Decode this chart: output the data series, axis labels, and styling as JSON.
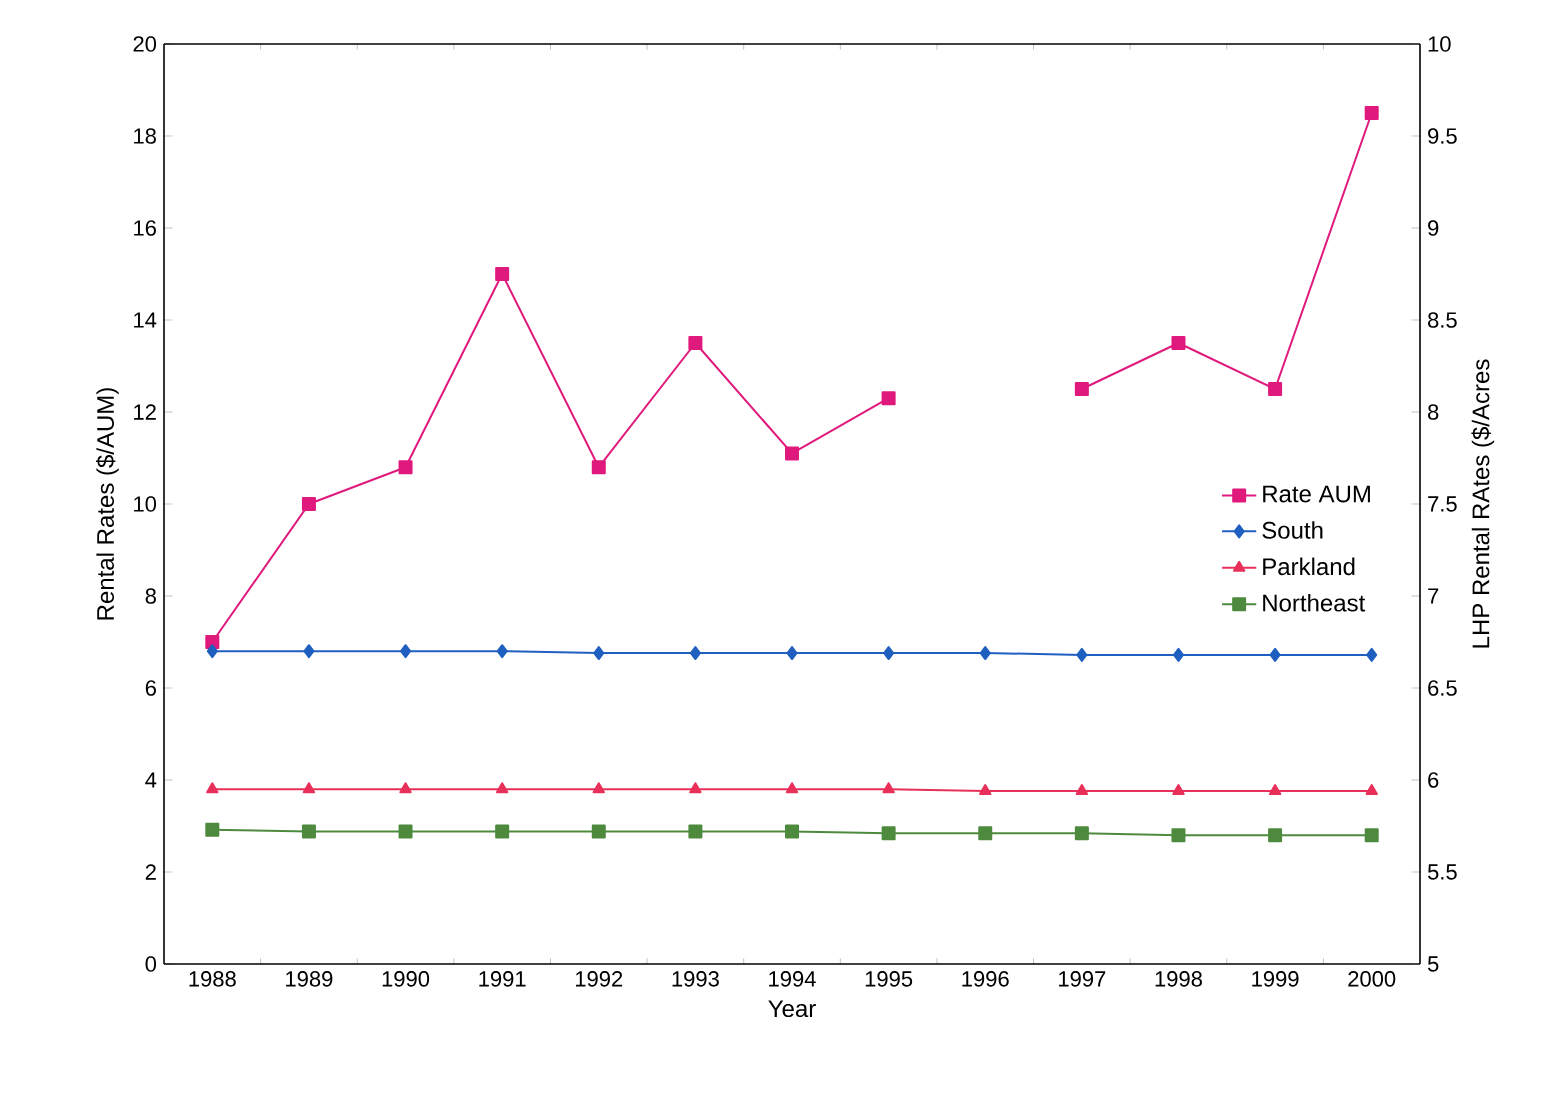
{
  "chart_data": {
    "type": "line",
    "xlabel": "Year",
    "ylabel": "Rental Rates ($/AUM)",
    "y2label": "LHP Rental RAtes ($/Acres",
    "categories": [
      "1988",
      "1989",
      "1990",
      "1991",
      "1992",
      "1993",
      "1994",
      "1995",
      "1996",
      "1997",
      "1998",
      "1999",
      "2000"
    ],
    "ylim": [
      0,
      20
    ],
    "yticks": [
      0,
      2,
      4,
      6,
      8,
      10,
      12,
      14,
      16,
      18,
      20
    ],
    "y2lim": [
      5,
      10
    ],
    "y2ticks": [
      5,
      5.5,
      6,
      6.5,
      7,
      7.5,
      8,
      8.5,
      9,
      9.5,
      10
    ],
    "legend": "right",
    "grid": false,
    "series": [
      {
        "name": "Rate AUM",
        "color": "#e0197d",
        "marker": "square",
        "values": [
          7.0,
          10.0,
          10.8,
          15.0,
          10.8,
          13.5,
          11.1,
          12.3,
          null,
          12.5,
          13.5,
          12.5,
          18.5
        ]
      },
      {
        "name": "South",
        "color": "#1f5fbf",
        "marker": "diamond",
        "axis": "y2",
        "values": [
          6.7,
          6.7,
          6.7,
          6.7,
          6.69,
          6.69,
          6.69,
          6.69,
          6.69,
          6.68,
          6.68,
          6.68,
          6.68
        ]
      },
      {
        "name": "Parkland",
        "color": "#e8305a",
        "marker": "triangle",
        "axis": "y2",
        "values": [
          5.95,
          5.95,
          5.95,
          5.95,
          5.95,
          5.95,
          5.95,
          5.95,
          5.94,
          5.94,
          5.94,
          5.94,
          5.94
        ]
      },
      {
        "name": "Northeast",
        "color": "#4e8a3e",
        "marker": "square",
        "axis": "y2",
        "values": [
          5.73,
          5.72,
          5.72,
          5.72,
          5.72,
          5.72,
          5.72,
          5.71,
          5.71,
          5.71,
          5.7,
          5.7,
          5.7
        ]
      }
    ]
  }
}
